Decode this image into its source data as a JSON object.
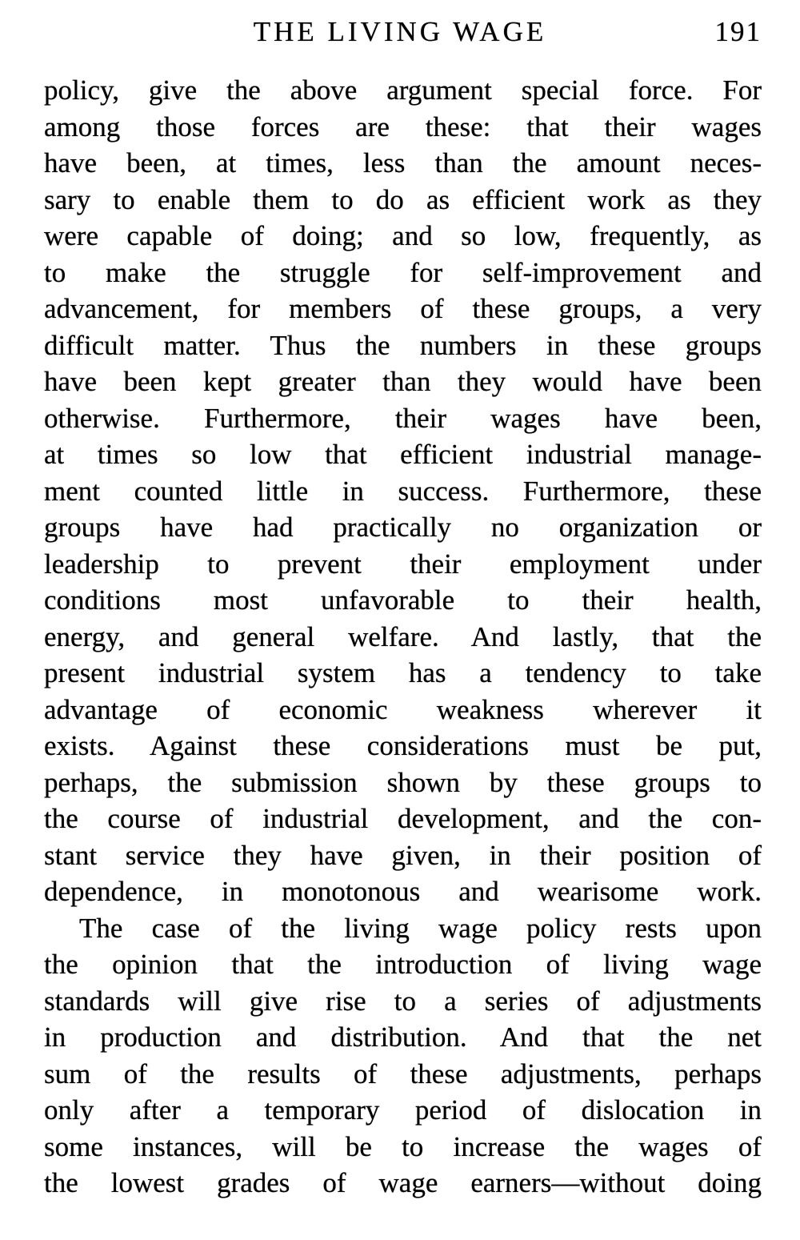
{
  "header": {
    "title": "THE LIVING WAGE",
    "page_number": "191"
  },
  "body": {
    "paragraphs": [
      {
        "indent": false,
        "lines": [
          "policy, give the above argument special force. For",
          "among those forces are these: that their wages",
          "have been, at times, less than the amount neces-",
          "sary to enable them to do as efficient work as they",
          "were capable of doing; and so low, frequently, as",
          "to make the struggle for self-improvement and",
          "advancement, for members of these groups, a very",
          "difficult matter. Thus the numbers in these groups",
          "have been kept greater than they would have been",
          "otherwise. Furthermore, their wages have been,",
          "at times so low that efficient industrial manage-",
          "ment counted little in success. Furthermore, these",
          "groups have had practically no organization or",
          "leadership to prevent their employment under",
          "conditions most unfavorable to their health,",
          "energy, and general welfare. And lastly, that the",
          "present industrial system has a tendency to take",
          "advantage of economic weakness wherever it",
          "exists. Against these considerations must be put,",
          "perhaps, the submission shown by these groups to",
          "the course of industrial development, and the con-",
          "stant service they have given, in their position of",
          "dependence, in monotonous and wearisome work."
        ]
      },
      {
        "indent": true,
        "lines": [
          "The case of the living wage policy rests upon",
          "the opinion that the introduction of living wage",
          "standards will give rise to a series of adjustments",
          "in production and distribution. And that the net",
          "sum of the results of these adjustments, perhaps",
          "only after a temporary period of dislocation in",
          "some instances, will be to increase the wages of",
          "the lowest grades of wage earners—without doing"
        ]
      }
    ]
  }
}
